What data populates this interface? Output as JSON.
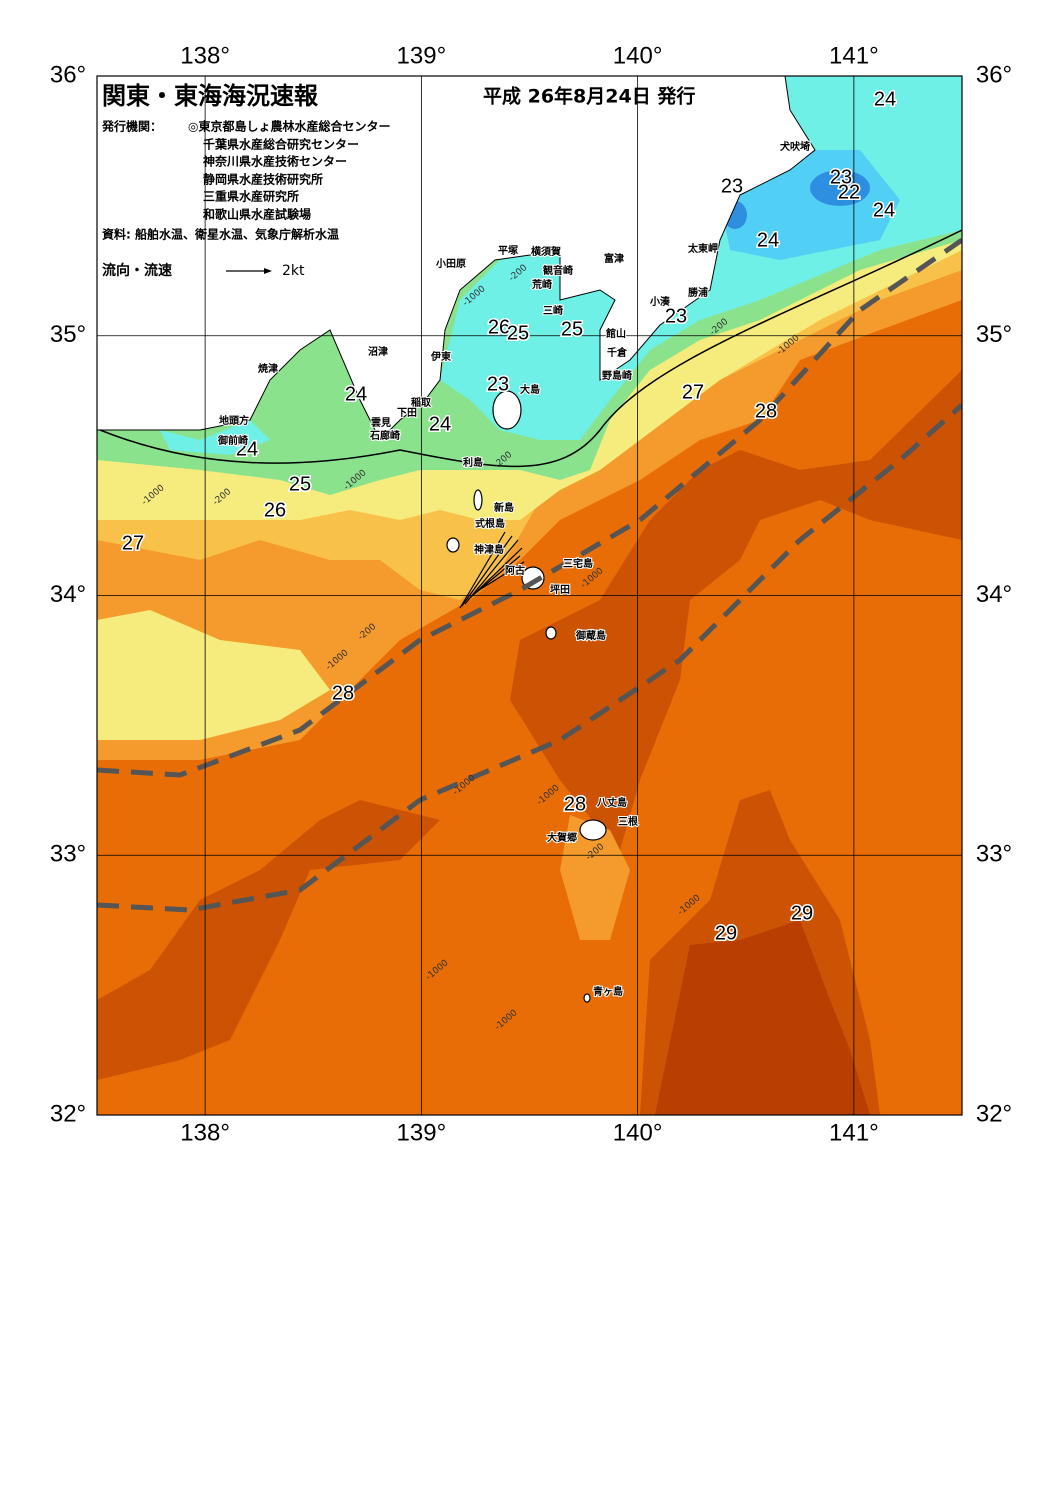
{
  "header": {
    "title": "関東・東海海況速報",
    "date": "平成 26年8月24日 発行",
    "issuer_label": "発行機関：",
    "issuers": [
      "◎東京都島しょ農林水産総合センター",
      "千葉県水産総合研究センター",
      "神奈川県水産技術センター",
      "静岡県水産技術研究所",
      "三重県水産研究所",
      "和歌山県水産試験場"
    ],
    "source": "資料: 船舶水温、衛星水温、気象庁解析水温",
    "legend_label": "流向・流速",
    "legend_scale": "2kt"
  },
  "map": {
    "lon_lim": [
      137.5,
      141.5
    ],
    "lat_lim": [
      32,
      36
    ],
    "lon_ticks": [
      {
        "value": 138,
        "label": "138°"
      },
      {
        "value": 139,
        "label": "139°"
      },
      {
        "value": 140,
        "label": "140°"
      },
      {
        "value": 141,
        "label": "141°"
      }
    ],
    "lat_ticks": [
      {
        "value": 32,
        "label": "32°"
      },
      {
        "value": 33,
        "label": "33°"
      },
      {
        "value": 34,
        "label": "34°"
      },
      {
        "value": 35,
        "label": "35°"
      },
      {
        "value": 36,
        "label": "36°"
      }
    ],
    "temperature_labels": [
      24,
      23,
      22,
      24,
      23,
      24,
      23,
      26,
      25,
      25,
      23,
      24,
      24,
      24,
      27,
      28,
      25,
      26,
      27,
      28,
      28,
      29,
      29
    ],
    "place_names": [
      "犬吠埼",
      "太東岬",
      "勝浦",
      "小湊",
      "館山",
      "千倉",
      "野島崎",
      "富津",
      "横須賀",
      "観音崎",
      "荒崎",
      "三崎",
      "平塚",
      "小田原",
      "沼津",
      "伊東",
      "大島",
      "焼津",
      "稲取",
      "下田",
      "雲見",
      "石廊崎",
      "地頭方",
      "御前崎",
      "利島",
      "新島",
      "式根島",
      "神津島",
      "三宅島",
      "阿古",
      "坪田",
      "御蔵島",
      "八丈島",
      "三根",
      "大賀郷",
      "青ヶ島"
    ],
    "depth_labels": [
      "-1000",
      "-200",
      "-1000",
      "-200",
      "-1000",
      "-200",
      "-200",
      "-1000",
      "-1000",
      "-200",
      "-1000",
      "-1000",
      "-1000",
      "-200",
      "-1000",
      "-1000",
      "-1000"
    ]
  }
}
